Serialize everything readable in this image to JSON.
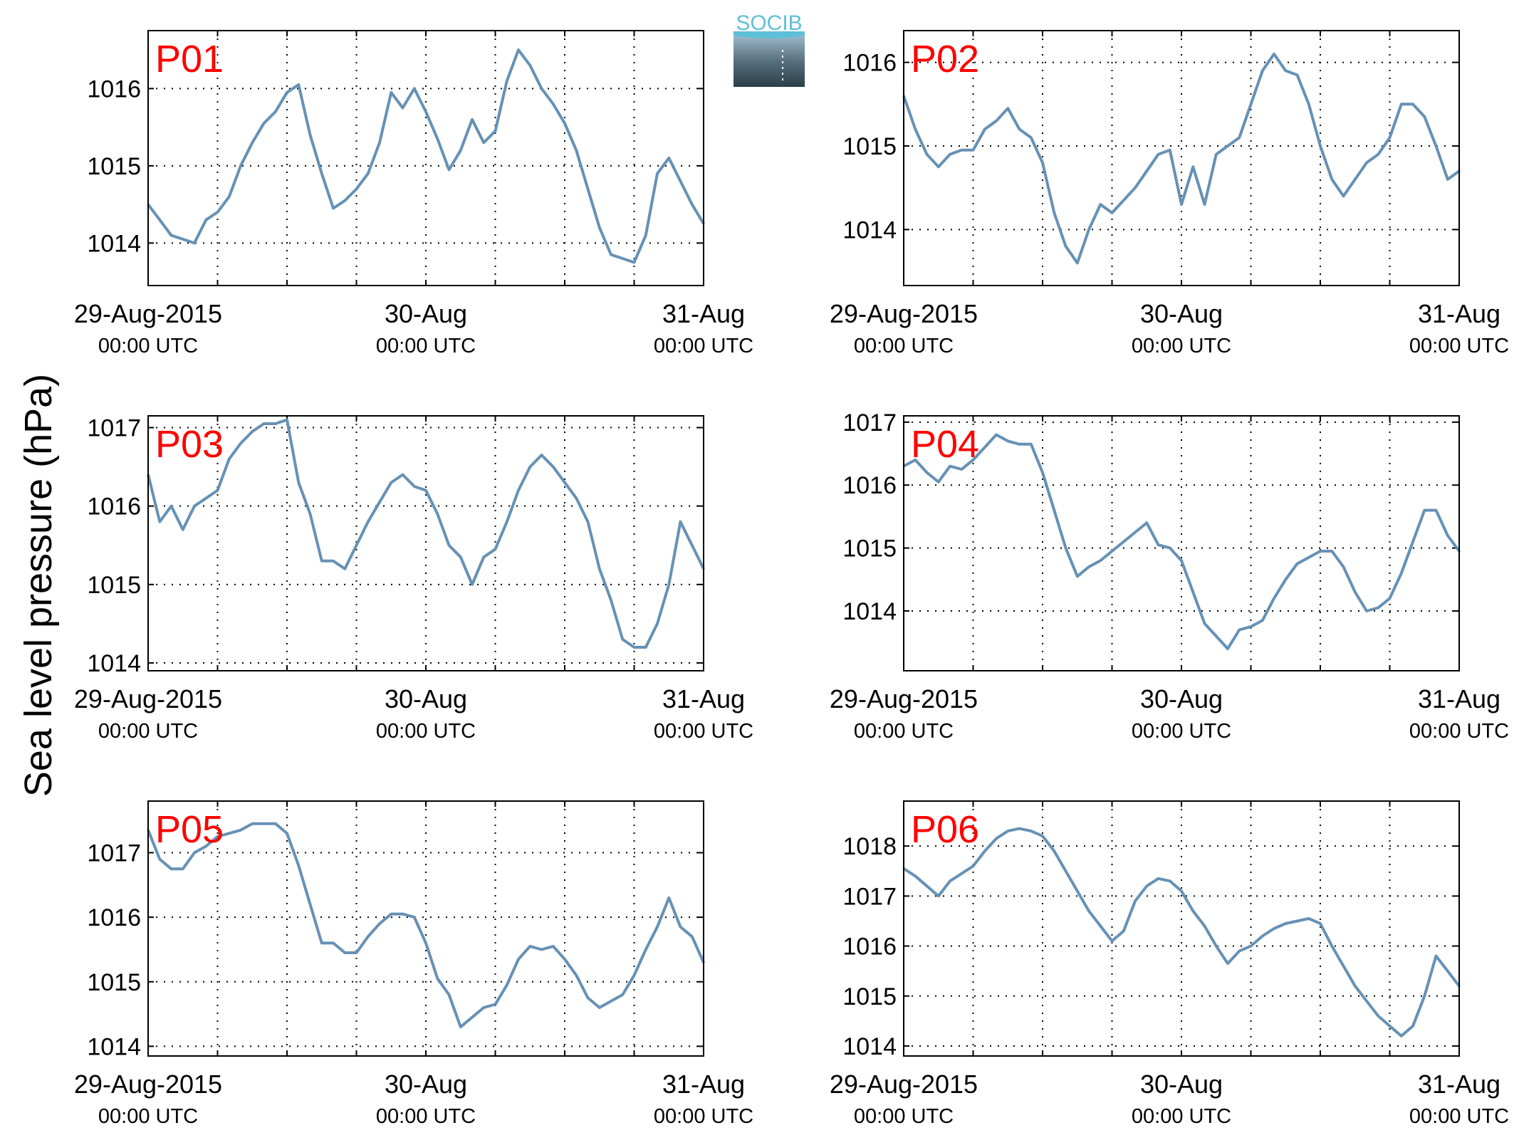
{
  "figure": {
    "ylabel": "Sea level pressure (hPa)",
    "logo_text": "SOCIB",
    "line_color": "#6691b5",
    "label_color": "#ff0000"
  },
  "chart_data": [
    {
      "type": "line",
      "panel": "P01",
      "xlabels": [
        {
          "date": "29-Aug-2015",
          "time": "00:00 UTC"
        },
        {
          "date": "30-Aug",
          "time": "00:00 UTC"
        },
        {
          "date": "31-Aug",
          "time": "00:00 UTC"
        }
      ],
      "xlim": [
        0,
        48
      ],
      "ylim": [
        1013.45,
        1016.75
      ],
      "yticks": [
        1014,
        1015,
        1016
      ],
      "grid": true,
      "x": [
        0,
        1,
        2,
        3,
        4,
        5,
        6,
        7,
        8,
        9,
        10,
        11,
        12,
        13,
        14,
        15,
        16,
        17,
        18,
        19,
        20,
        21,
        22,
        23,
        24,
        25,
        26,
        27,
        28,
        29,
        30,
        31,
        32,
        33,
        34,
        35,
        36,
        37,
        38,
        39,
        40,
        41,
        42,
        43,
        44,
        45,
        46,
        47,
        48
      ],
      "values": [
        1014.5,
        1014.3,
        1014.1,
        1014.05,
        1014.0,
        1014.3,
        1014.4,
        1014.6,
        1015.0,
        1015.3,
        1015.55,
        1015.7,
        1015.95,
        1016.05,
        1015.4,
        1014.9,
        1014.45,
        1014.55,
        1014.7,
        1014.9,
        1015.3,
        1015.95,
        1015.75,
        1016.0,
        1015.7,
        1015.35,
        1014.95,
        1015.2,
        1015.6,
        1015.3,
        1015.45,
        1016.1,
        1016.5,
        1016.3,
        1016.0,
        1015.8,
        1015.55,
        1015.2,
        1014.7,
        1014.2,
        1013.85,
        1013.8,
        1013.75,
        1014.1,
        1014.9,
        1015.1,
        1014.8,
        1014.5,
        1014.25
      ]
    },
    {
      "type": "line",
      "panel": "P02",
      "xlabels": [
        {
          "date": "29-Aug-2015",
          "time": "00:00 UTC"
        },
        {
          "date": "30-Aug",
          "time": "00:00 UTC"
        },
        {
          "date": "31-Aug",
          "time": "00:00 UTC"
        }
      ],
      "xlim": [
        0,
        48
      ],
      "ylim": [
        1013.33,
        1016.38
      ],
      "yticks": [
        1014,
        1015,
        1016
      ],
      "grid": true,
      "x": [
        0,
        1,
        2,
        3,
        4,
        5,
        6,
        7,
        8,
        9,
        10,
        11,
        12,
        13,
        14,
        15,
        16,
        17,
        18,
        19,
        20,
        21,
        22,
        23,
        24,
        25,
        26,
        27,
        28,
        29,
        30,
        31,
        32,
        33,
        34,
        35,
        36,
        37,
        38,
        39,
        40,
        41,
        42,
        43,
        44,
        45,
        46,
        47,
        48
      ],
      "values": [
        1015.6,
        1015.2,
        1014.9,
        1014.75,
        1014.9,
        1014.95,
        1014.95,
        1015.2,
        1015.3,
        1015.45,
        1015.2,
        1015.1,
        1014.8,
        1014.2,
        1013.8,
        1013.6,
        1014.0,
        1014.3,
        1014.2,
        1014.35,
        1014.5,
        1014.7,
        1014.9,
        1014.95,
        1014.3,
        1014.75,
        1014.3,
        1014.9,
        1015.0,
        1015.1,
        1015.5,
        1015.9,
        1016.1,
        1015.9,
        1015.85,
        1015.5,
        1015.0,
        1014.6,
        1014.4,
        1014.6,
        1014.8,
        1014.9,
        1015.1,
        1015.5,
        1015.5,
        1015.35,
        1015.0,
        1014.6,
        1014.7
      ]
    },
    {
      "type": "line",
      "panel": "P03",
      "xlabels": [
        {
          "date": "29-Aug-2015",
          "time": "00:00 UTC"
        },
        {
          "date": "30-Aug",
          "time": "00:00 UTC"
        },
        {
          "date": "31-Aug",
          "time": "00:00 UTC"
        }
      ],
      "xlim": [
        0,
        48
      ],
      "ylim": [
        1013.9,
        1017.15
      ],
      "yticks": [
        1014,
        1015,
        1016,
        1017
      ],
      "grid": true,
      "x": [
        0,
        1,
        2,
        3,
        4,
        5,
        6,
        7,
        8,
        9,
        10,
        11,
        12,
        13,
        14,
        15,
        16,
        17,
        18,
        19,
        20,
        21,
        22,
        23,
        24,
        25,
        26,
        27,
        28,
        29,
        30,
        31,
        32,
        33,
        34,
        35,
        36,
        37,
        38,
        39,
        40,
        41,
        42,
        43,
        44,
        45,
        46,
        47,
        48
      ],
      "values": [
        1016.4,
        1015.8,
        1016.0,
        1015.7,
        1016.0,
        1016.1,
        1016.2,
        1016.6,
        1016.8,
        1016.95,
        1017.05,
        1017.05,
        1017.1,
        1016.3,
        1015.9,
        1015.3,
        1015.3,
        1015.2,
        1015.5,
        1015.8,
        1016.05,
        1016.3,
        1016.4,
        1016.25,
        1016.2,
        1015.9,
        1015.5,
        1015.35,
        1015.0,
        1015.35,
        1015.45,
        1015.8,
        1016.2,
        1016.5,
        1016.65,
        1016.5,
        1016.3,
        1016.1,
        1015.8,
        1015.2,
        1014.8,
        1014.3,
        1014.2,
        1014.2,
        1014.5,
        1015.0,
        1015.8,
        1015.5,
        1015.2
      ]
    },
    {
      "type": "line",
      "panel": "P04",
      "xlabels": [
        {
          "date": "29-Aug-2015",
          "time": "00:00 UTC"
        },
        {
          "date": "30-Aug",
          "time": "00:00 UTC"
        },
        {
          "date": "31-Aug",
          "time": "00:00 UTC"
        }
      ],
      "xlim": [
        0,
        48
      ],
      "ylim": [
        1013.05,
        1017.1
      ],
      "yticks": [
        1014,
        1015,
        1016,
        1017
      ],
      "grid": true,
      "x": [
        0,
        1,
        2,
        3,
        4,
        5,
        6,
        7,
        8,
        9,
        10,
        11,
        12,
        13,
        14,
        15,
        16,
        17,
        18,
        19,
        20,
        21,
        22,
        23,
        24,
        25,
        26,
        27,
        28,
        29,
        30,
        31,
        32,
        33,
        34,
        35,
        36,
        37,
        38,
        39,
        40,
        41,
        42,
        43,
        44,
        45,
        46,
        47,
        48
      ],
      "values": [
        1016.3,
        1016.4,
        1016.2,
        1016.05,
        1016.3,
        1016.25,
        1016.4,
        1016.6,
        1016.8,
        1016.7,
        1016.65,
        1016.65,
        1016.2,
        1015.6,
        1015.0,
        1014.55,
        1014.7,
        1014.8,
        1014.95,
        1015.1,
        1015.25,
        1015.4,
        1015.05,
        1015.0,
        1014.8,
        1014.3,
        1013.8,
        1013.6,
        1013.4,
        1013.7,
        1013.75,
        1013.85,
        1014.2,
        1014.5,
        1014.75,
        1014.85,
        1014.95,
        1014.95,
        1014.7,
        1014.3,
        1014.0,
        1014.05,
        1014.2,
        1014.6,
        1015.1,
        1015.6,
        1015.6,
        1015.2,
        1014.95
      ]
    },
    {
      "type": "line",
      "panel": "P05",
      "xlabels": [
        {
          "date": "29-Aug-2015",
          "time": "00:00 UTC"
        },
        {
          "date": "30-Aug",
          "time": "00:00 UTC"
        },
        {
          "date": "31-Aug",
          "time": "00:00 UTC"
        }
      ],
      "xlim": [
        0,
        48
      ],
      "ylim": [
        1013.85,
        1017.8
      ],
      "yticks": [
        1014,
        1015,
        1016,
        1017
      ],
      "grid": true,
      "x": [
        0,
        1,
        2,
        3,
        4,
        5,
        6,
        7,
        8,
        9,
        10,
        11,
        12,
        13,
        14,
        15,
        16,
        17,
        18,
        19,
        20,
        21,
        22,
        23,
        24,
        25,
        26,
        27,
        28,
        29,
        30,
        31,
        32,
        33,
        34,
        35,
        36,
        37,
        38,
        39,
        40,
        41,
        42,
        43,
        44,
        45,
        46,
        47,
        48
      ],
      "values": [
        1017.35,
        1016.9,
        1016.75,
        1016.75,
        1017.0,
        1017.1,
        1017.25,
        1017.3,
        1017.35,
        1017.45,
        1017.45,
        1017.45,
        1017.3,
        1016.8,
        1016.2,
        1015.6,
        1015.6,
        1015.45,
        1015.45,
        1015.7,
        1015.9,
        1016.05,
        1016.05,
        1016.0,
        1015.6,
        1015.05,
        1014.8,
        1014.3,
        1014.45,
        1014.6,
        1014.65,
        1014.95,
        1015.35,
        1015.55,
        1015.5,
        1015.55,
        1015.35,
        1015.1,
        1014.75,
        1014.6,
        1014.7,
        1014.8,
        1015.1,
        1015.5,
        1015.85,
        1016.3,
        1015.85,
        1015.7,
        1015.3
      ]
    },
    {
      "type": "line",
      "panel": "P06",
      "xlabels": [
        {
          "date": "29-Aug-2015",
          "time": "00:00 UTC"
        },
        {
          "date": "30-Aug",
          "time": "00:00 UTC"
        },
        {
          "date": "31-Aug",
          "time": "00:00 UTC"
        }
      ],
      "xlim": [
        0,
        48
      ],
      "ylim": [
        1013.8,
        1018.9
      ],
      "yticks": [
        1014,
        1015,
        1016,
        1017,
        1018
      ],
      "grid": true,
      "x": [
        0,
        1,
        2,
        3,
        4,
        5,
        6,
        7,
        8,
        9,
        10,
        11,
        12,
        13,
        14,
        15,
        16,
        17,
        18,
        19,
        20,
        21,
        22,
        23,
        24,
        25,
        26,
        27,
        28,
        29,
        30,
        31,
        32,
        33,
        34,
        35,
        36,
        37,
        38,
        39,
        40,
        41,
        42,
        43,
        44,
        45,
        46,
        47,
        48
      ],
      "values": [
        1017.55,
        1017.4,
        1017.2,
        1017.0,
        1017.3,
        1017.45,
        1017.6,
        1017.9,
        1018.15,
        1018.3,
        1018.35,
        1018.3,
        1018.2,
        1017.9,
        1017.5,
        1017.1,
        1016.7,
        1016.4,
        1016.1,
        1016.3,
        1016.9,
        1017.2,
        1017.35,
        1017.3,
        1017.1,
        1016.7,
        1016.4,
        1016.0,
        1015.65,
        1015.9,
        1016.0,
        1016.2,
        1016.35,
        1016.45,
        1016.5,
        1016.55,
        1016.45,
        1016.0,
        1015.6,
        1015.2,
        1014.9,
        1014.6,
        1014.4,
        1014.2,
        1014.4,
        1015.0,
        1015.8,
        1015.5,
        1015.2
      ]
    }
  ]
}
